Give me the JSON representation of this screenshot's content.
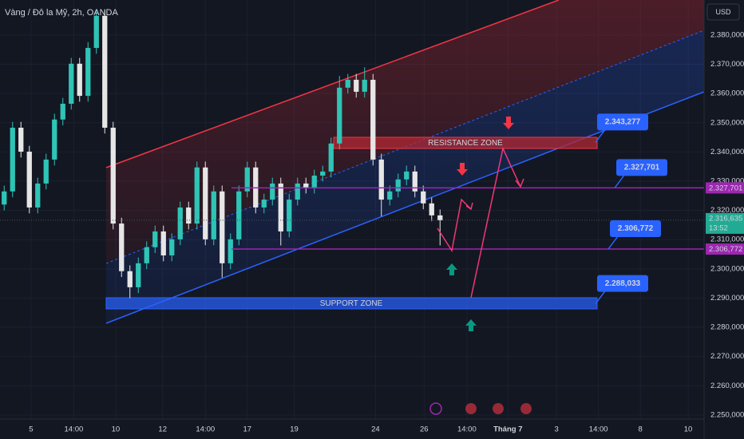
{
  "chart_data": {
    "type": "candlestick",
    "title": "Vàng / Đô la Mỹ, 2h, OANDA",
    "currency": "USD",
    "x": [
      0,
      1,
      2,
      3,
      4,
      5,
      6,
      7,
      8,
      9,
      10,
      11,
      12,
      13,
      14,
      15,
      16,
      17,
      18,
      19,
      20,
      21,
      22,
      23,
      24,
      25,
      26,
      27,
      28,
      29,
      30,
      31,
      32,
      33,
      34,
      35,
      36,
      37,
      38,
      39,
      40,
      41,
      42,
      43,
      44,
      45,
      46,
      47,
      48,
      49,
      50,
      51,
      52
    ],
    "open": [
      2.322,
      2.3265,
      2.3483,
      2.3401,
      2.321,
      2.3292,
      2.3374,
      2.3511,
      2.3565,
      2.3702,
      2.3592,
      2.3756,
      2.3866,
      2.3483,
      2.3155,
      2.2992,
      2.2937,
      2.3019,
      2.3074,
      2.3128,
      2.3046,
      2.3101,
      2.321,
      2.3155,
      2.3347,
      2.3101,
      2.3265,
      2.3019,
      2.3101,
      2.3265,
      2.3347,
      2.321,
      2.3237,
      2.3292,
      2.3128,
      2.3237,
      2.3292,
      2.3278,
      2.3319,
      2.3333,
      2.3429,
      2.362,
      2.3647,
      2.3606,
      2.3647,
      2.3374,
      2.3237,
      2.3265,
      2.3306,
      2.3333,
      2.3265,
      2.3224,
      2.3183
    ],
    "high": [
      2.3285,
      2.3503,
      2.3503,
      2.3421,
      2.3312,
      2.3394,
      2.3531,
      2.3585,
      2.3722,
      2.3722,
      2.3776,
      2.3886,
      2.3886,
      2.3503,
      2.3175,
      2.3012,
      2.3039,
      2.3094,
      2.3148,
      2.3148,
      2.3121,
      2.323,
      2.323,
      2.3367,
      2.3367,
      2.3285,
      2.3285,
      2.3121,
      2.3285,
      2.3367,
      2.3367,
      2.3257,
      2.3312,
      2.3312,
      2.3257,
      2.3312,
      2.3312,
      2.3339,
      2.3353,
      2.3449,
      2.366,
      2.3667,
      2.3667,
      2.369,
      2.3667,
      2.3394,
      2.3285,
      2.3326,
      2.3353,
      2.3353,
      2.3285,
      2.3244,
      2.3203
    ],
    "low": [
      2.32,
      2.3245,
      2.3381,
      2.319,
      2.319,
      2.3272,
      2.3354,
      2.3491,
      2.3545,
      2.3572,
      2.3572,
      2.3736,
      2.3463,
      2.3135,
      2.2972,
      2.29,
      2.2917,
      2.2999,
      2.3054,
      2.3026,
      2.3026,
      2.3081,
      2.3135,
      2.3135,
      2.3081,
      2.3081,
      2.297,
      2.2999,
      2.3081,
      2.3245,
      2.319,
      2.319,
      2.3217,
      2.308,
      2.3108,
      2.3217,
      2.3258,
      2.3258,
      2.3299,
      2.3313,
      2.3409,
      2.36,
      2.3586,
      2.3586,
      2.3354,
      2.318,
      2.3217,
      2.3245,
      2.3286,
      2.3245,
      2.3204,
      2.3163,
      2.308
    ],
    "close": [
      2.3265,
      2.3483,
      2.3401,
      2.321,
      2.3292,
      2.3374,
      2.3511,
      2.3565,
      2.3702,
      2.3592,
      2.3756,
      2.3866,
      2.3483,
      2.3155,
      2.2992,
      2.2937,
      2.3019,
      2.3074,
      2.3128,
      2.3046,
      2.3101,
      2.321,
      2.3155,
      2.3347,
      2.3101,
      2.3265,
      2.3019,
      2.3101,
      2.3265,
      2.3347,
      2.321,
      2.3237,
      2.3292,
      2.3128,
      2.3237,
      2.3292,
      2.3278,
      2.3319,
      2.3333,
      2.3429,
      2.362,
      2.3647,
      2.3606,
      2.3647,
      2.3374,
      2.3237,
      2.3265,
      2.3306,
      2.3333,
      2.3265,
      2.3224,
      2.3183,
      2.3166
    ],
    "up_color": "#2ec4b6",
    "down_color": "#e6e6e6",
    "xlim": [
      -0.5,
      83.5
    ],
    "xticks": [
      {
        "value": 3.2,
        "label": "5"
      },
      {
        "value": 8.3,
        "label": "14:00"
      },
      {
        "value": 13.3,
        "label": "10"
      },
      {
        "value": 18.9,
        "label": "12"
      },
      {
        "value": 24,
        "label": "14:00"
      },
      {
        "value": 29,
        "label": "17"
      },
      {
        "value": 34.6,
        "label": "19"
      },
      {
        "value": 44.3,
        "label": "24"
      },
      {
        "value": 50.1,
        "label": "26"
      },
      {
        "value": 55.2,
        "label": "14:00"
      },
      {
        "value": 60.1,
        "label": "Tháng 7"
      },
      {
        "value": 65.9,
        "label": "3"
      },
      {
        "value": 70.9,
        "label": "14:00"
      },
      {
        "value": 75.9,
        "label": "8"
      },
      {
        "value": 81.6,
        "label": "10"
      }
    ],
    "ylim": [
      2.2486,
      2.392
    ],
    "yticks": [
      {
        "value": 2.25,
        "label": "2.250,000"
      },
      {
        "value": 2.26,
        "label": "2.260,000"
      },
      {
        "value": 2.27,
        "label": "2.270,000"
      },
      {
        "value": 2.28,
        "label": "2.280,000"
      },
      {
        "value": 2.29,
        "label": "2.290,000"
      },
      {
        "value": 2.3,
        "label": "2.300,000"
      },
      {
        "value": 2.31,
        "label": "2.310,000"
      },
      {
        "value": 2.32,
        "label": "2.320,000"
      },
      {
        "value": 2.33,
        "label": "2.330,000"
      },
      {
        "value": 2.34,
        "label": "2.340,000"
      },
      {
        "value": 2.35,
        "label": "2.350,000"
      },
      {
        "value": 2.36,
        "label": "2.360,000"
      },
      {
        "value": 2.37,
        "label": "2.370,000"
      },
      {
        "value": 2.38,
        "label": "2.380,000"
      }
    ],
    "levels": [
      {
        "value": 2.343277,
        "label": "2.343,277",
        "line": false
      },
      {
        "value": 2.327701,
        "label": "2.327,701",
        "line": true,
        "color": "#9c27b0"
      },
      {
        "value": 2.306772,
        "label": "2.306,772",
        "line": true,
        "color": "#9c27b0"
      },
      {
        "value": 2.288033,
        "label": "2.288,033",
        "line": false
      }
    ],
    "zones": [
      "RESISTANCE ZONE",
      "SUPPORT ZONE"
    ],
    "last_price": {
      "value": 2.316635,
      "label": "2.316,635"
    },
    "countdown": "13:52"
  }
}
